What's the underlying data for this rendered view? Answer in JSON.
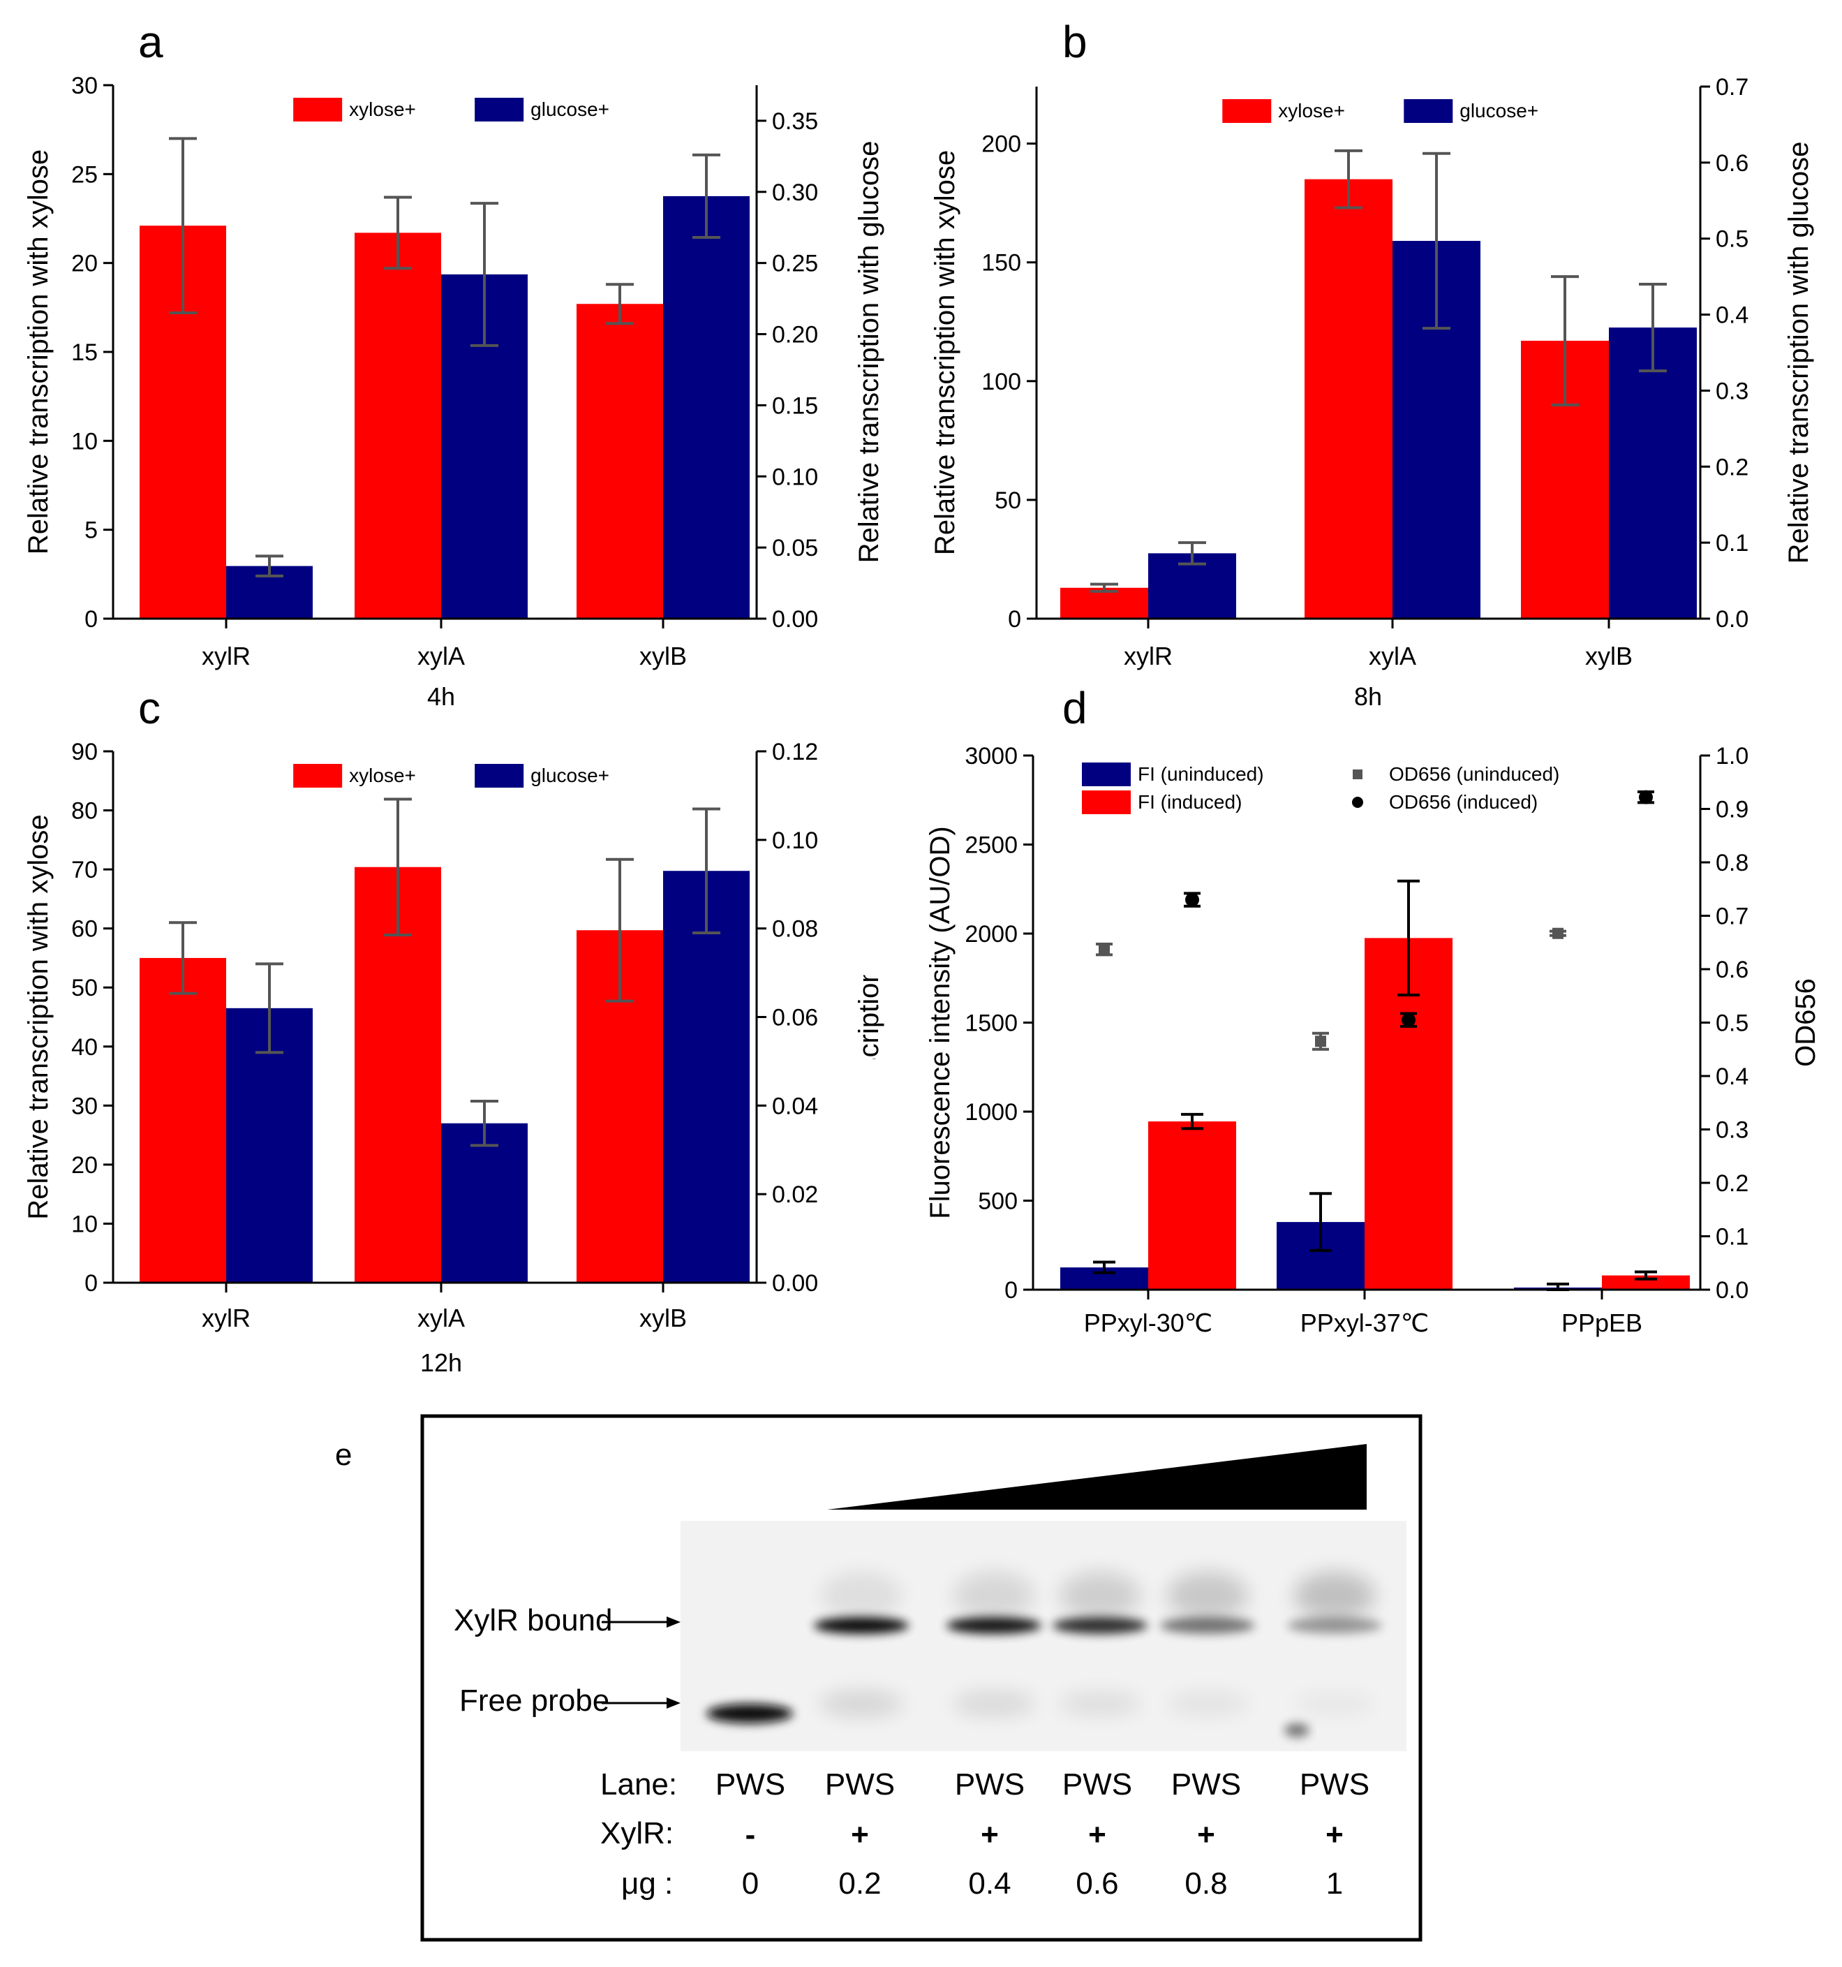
{
  "colors": {
    "red": "#ff0000",
    "blue": "#000080",
    "err": "#555555"
  },
  "chart_data": [
    {
      "id": "a",
      "type": "bar",
      "panel_label": "a",
      "subtitle": "4h",
      "categories": [
        "xylR",
        "xylA",
        "xylB"
      ],
      "series": [
        {
          "name": "xylose+",
          "axis": "left",
          "values": [
            22.1,
            21.7,
            17.7
          ],
          "errors": [
            4.9,
            2.0,
            1.1
          ]
        },
        {
          "name": "glucose+",
          "axis": "right",
          "values": [
            0.037,
            0.242,
            0.297
          ],
          "errors": [
            0.007,
            0.05,
            0.029
          ]
        }
      ],
      "ylabel": "Relative transcription with xylose",
      "ylabel_right": "Relative transcription with glucose",
      "ylim": [
        0,
        30
      ],
      "ylim_right": [
        0,
        0.375
      ],
      "yticks": [
        "0",
        "5",
        "10",
        "15",
        "20",
        "25",
        "30"
      ],
      "yticks_right": [
        "0.00",
        "0.05",
        "0.10",
        "0.15",
        "0.20",
        "0.25",
        "0.30",
        "0.35"
      ],
      "legend": "top-center"
    },
    {
      "id": "b",
      "type": "bar",
      "panel_label": "b",
      "subtitle": "8h",
      "categories": [
        "xylR",
        "xylA",
        "xylB"
      ],
      "series": [
        {
          "name": "xylose+",
          "axis": "left",
          "values": [
            13,
            185,
            117
          ],
          "errors": [
            1.5,
            12,
            27
          ]
        },
        {
          "name": "glucose+",
          "axis": "right",
          "values": [
            0.086,
            0.497,
            0.383
          ],
          "errors": [
            0.014,
            0.115,
            0.057
          ]
        }
      ],
      "ylabel": "Relative transcription with xylose",
      "ylabel_right": "Relative transcription with glucose",
      "ylim": [
        0,
        224
      ],
      "ylim_right": [
        0,
        0.7
      ],
      "yticks": [
        "0",
        "50",
        "100",
        "150",
        "200"
      ],
      "yticks_right": [
        "0.0",
        "0.1",
        "0.2",
        "0.3",
        "0.4",
        "0.5",
        "0.6",
        "0.7"
      ],
      "legend": "top-center"
    },
    {
      "id": "c",
      "type": "bar",
      "panel_label": "c",
      "subtitle": "12h",
      "categories": [
        "xylR",
        "xylA",
        "xylB"
      ],
      "series": [
        {
          "name": "xylose+",
          "axis": "left",
          "values": [
            55,
            70.4,
            59.7
          ],
          "errors": [
            6,
            11.5,
            12
          ]
        },
        {
          "name": "glucose+",
          "axis": "right",
          "values": [
            0.062,
            0.036,
            0.093
          ],
          "errors": [
            0.01,
            0.005,
            0.014
          ]
        }
      ],
      "ylabel": "Relative transcription with xylose",
      "ylabel_right": "Relative transcription with glucose",
      "ylim": [
        0,
        90
      ],
      "ylim_right": [
        0,
        0.12
      ],
      "yticks": [
        "0",
        "10",
        "20",
        "30",
        "40",
        "50",
        "60",
        "70",
        "80",
        "90"
      ],
      "yticks_right": [
        "0.00",
        "0.02",
        "0.04",
        "0.06",
        "0.08",
        "0.10",
        "0.12"
      ],
      "legend": "top-center"
    },
    {
      "id": "d",
      "type": "bar",
      "panel_label": "d",
      "categories": [
        "PPxyl-30℃",
        "PPxyl-37℃",
        "PPpEB"
      ],
      "series": [
        {
          "name": "FI (uninduced)",
          "axis": "left",
          "values": [
            125,
            380,
            12
          ],
          "errors": [
            30,
            160,
            20
          ]
        },
        {
          "name": "FI (induced)",
          "axis": "left",
          "values": [
            945,
            1975,
            80
          ],
          "errors": [
            40,
            320,
            20
          ]
        }
      ],
      "scatter": [
        {
          "name": "OD656 (uninduced)",
          "axis": "right",
          "values": [
            0.637,
            0.465,
            0.667
          ],
          "errors": [
            0.01,
            0.015,
            0.004
          ]
        },
        {
          "name": "OD656 (induced)",
          "axis": "right",
          "values": [
            0.73,
            0.505,
            0.922
          ],
          "errors": [
            0.012,
            0.012,
            0.01
          ]
        }
      ],
      "ylabel": "Fluorescence intensity (AU/OD)",
      "ylabel_right": "OD656",
      "ylim": [
        0,
        3000
      ],
      "ylim_right": [
        0,
        1.0
      ],
      "yticks": [
        "0",
        "500",
        "1000",
        "1500",
        "2000",
        "2500",
        "3000"
      ],
      "yticks_right": [
        "0.0",
        "0.1",
        "0.2",
        "0.3",
        "0.4",
        "0.5",
        "0.6",
        "0.7",
        "0.8",
        "0.9",
        "1.0"
      ],
      "legend": "top"
    }
  ],
  "gel": {
    "panel_label": "e",
    "bound_label": "XylR bound",
    "free_label": "Free probe",
    "row_lane_label": "Lane:",
    "row_xylr_label": "XylR:",
    "row_ug_label": "μg :",
    "lanes": [
      {
        "name": "PWS",
        "xylr": "-",
        "ug": "0"
      },
      {
        "name": "PWS",
        "xylr": "+",
        "ug": "0.2"
      },
      {
        "name": "PWS",
        "xylr": "+",
        "ug": "0.4"
      },
      {
        "name": "PWS",
        "xylr": "+",
        "ug": "0.6"
      },
      {
        "name": "PWS",
        "xylr": "+",
        "ug": "0.8"
      },
      {
        "name": "PWS",
        "xylr": "+",
        "ug": "1"
      }
    ]
  }
}
